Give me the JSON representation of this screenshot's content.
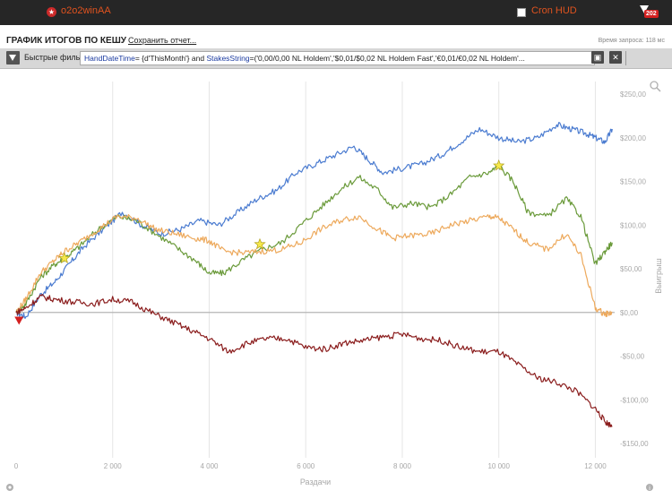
{
  "topbar": {
    "user_name": "o2o2winAA",
    "hud_label": "Cron HUD",
    "badge_count": "202",
    "logo_icon": "pokerstars-logo-icon",
    "filter_icon": "funnel-icon"
  },
  "header": {
    "title": "ГРАФИК ИТОГОВ ПО КЕШУ",
    "save_link": "Сохранить отчет...",
    "request_time": "Время запроса: 118 мс"
  },
  "filter_bar": {
    "label": "Быстрые фильт",
    "query_kw1": "HandDateTime",
    "query_part1": "= {d'ThisMonth'} and ",
    "query_kw2": "StakesString",
    "query_part2": "=('0,00/0,00 NL Holdem','$0,01/$0,02 NL Holdem Fast','€0,01/€0,02 NL Holdem'...",
    "save_icon": "floppy-disk-icon",
    "close_icon": "close-icon"
  },
  "chart_data": {
    "type": "line",
    "xlabel": "Раздачи",
    "ylabel": "Выигрыш",
    "xlim": [
      0,
      12400
    ],
    "ylim": [
      -160,
      255
    ],
    "x_ticks": [
      0,
      2000,
      4000,
      6000,
      8000,
      10000,
      12000
    ],
    "x_tick_labels": [
      "0",
      "2 000",
      "4 000",
      "6 000",
      "8 000",
      "10 000",
      "12 000"
    ],
    "y_ticks": [
      250,
      200,
      150,
      100,
      50,
      0,
      -50,
      -100,
      -150
    ],
    "y_tick_labels": [
      "$250,00",
      "$200,00",
      "$150,00",
      "$100,00",
      "$50,00",
      "$0,00",
      "-$50,00",
      "-$100,00",
      "-$150,00"
    ],
    "grid": "vertical",
    "series": [
      {
        "color": "#4a7bd0",
        "x": [
          0,
          200,
          500,
          800,
          1100,
          1400,
          1800,
          2200,
          2600,
          3000,
          3400,
          3800,
          4200,
          4600,
          5000,
          5400,
          5800,
          6200,
          6600,
          7000,
          7300,
          7600,
          8000,
          8400,
          8800,
          9200,
          9600,
          10000,
          10400,
          10800,
          11200,
          11500,
          11800,
          12000,
          12200,
          12350
        ],
        "y": [
          0,
          -5,
          20,
          35,
          55,
          75,
          95,
          115,
          100,
          90,
          95,
          105,
          100,
          115,
          130,
          140,
          160,
          170,
          180,
          190,
          175,
          160,
          165,
          170,
          180,
          195,
          210,
          200,
          195,
          200,
          215,
          210,
          205,
          200,
          195,
          210
        ]
      },
      {
        "color": "#6a9a3a",
        "x": [
          0,
          200,
          500,
          800,
          1000,
          1300,
          1700,
          2100,
          2500,
          2900,
          3300,
          3700,
          4000,
          4300,
          4700,
          5100,
          5500,
          5900,
          6300,
          6700,
          7100,
          7500,
          7800,
          8200,
          8600,
          9000,
          9400,
          9800,
          10000,
          10300,
          10600,
          11000,
          11400,
          11700,
          12000,
          12200,
          12350
        ],
        "y": [
          0,
          10,
          40,
          55,
          62,
          75,
          95,
          110,
          105,
          90,
          75,
          60,
          45,
          45,
          60,
          72,
          80,
          100,
          120,
          140,
          155,
          140,
          120,
          125,
          120,
          135,
          155,
          160,
          168,
          150,
          115,
          110,
          130,
          110,
          55,
          70,
          80
        ]
      },
      {
        "color": "#eda95c",
        "x": [
          0,
          200,
          500,
          800,
          1000,
          1300,
          1700,
          2100,
          2500,
          2900,
          3300,
          3700,
          4000,
          4300,
          4700,
          5100,
          5500,
          5900,
          6300,
          6700,
          7100,
          7500,
          7800,
          8200,
          8600,
          9000,
          9400,
          9800,
          10000,
          10300,
          10600,
          11000,
          11400,
          11700,
          12000,
          12200,
          12350
        ],
        "y": [
          0,
          15,
          45,
          60,
          70,
          80,
          95,
          110,
          108,
          95,
          90,
          85,
          82,
          70,
          68,
          70,
          72,
          80,
          95,
          105,
          110,
          95,
          85,
          88,
          90,
          100,
          105,
          110,
          108,
          95,
          80,
          72,
          90,
          65,
          5,
          -2,
          0
        ]
      },
      {
        "color": "#8a1c1c",
        "x": [
          0,
          200,
          500,
          800,
          1200,
          1600,
          2000,
          2400,
          2800,
          3200,
          3600,
          4000,
          4400,
          4800,
          5200,
          5600,
          6000,
          6400,
          6800,
          7200,
          7600,
          8000,
          8400,
          8800,
          9200,
          9600,
          10000,
          10400,
          10800,
          11200,
          11600,
          12000,
          12200,
          12350
        ],
        "y": [
          0,
          5,
          18,
          15,
          12,
          10,
          15,
          12,
          0,
          -10,
          -20,
          -30,
          -45,
          -35,
          -30,
          -30,
          -40,
          -42,
          -35,
          -32,
          -28,
          -25,
          -30,
          -32,
          -40,
          -45,
          -45,
          -60,
          -75,
          -80,
          -90,
          -110,
          -125,
          -130
        ]
      }
    ],
    "markers": [
      {
        "type": "star",
        "x": 1000,
        "y": 62,
        "color": "#f5e84a"
      },
      {
        "type": "star",
        "x": 5050,
        "y": 78,
        "color": "#f5e84a"
      },
      {
        "type": "star",
        "x": 10000,
        "y": 168,
        "color": "#f5e84a"
      },
      {
        "type": "triangle-down",
        "x": 60,
        "y": -10,
        "color": "#d42020"
      }
    ],
    "tool_icons": [
      "zoom-icon",
      "settings-gear-icon",
      "info-icon"
    ]
  }
}
